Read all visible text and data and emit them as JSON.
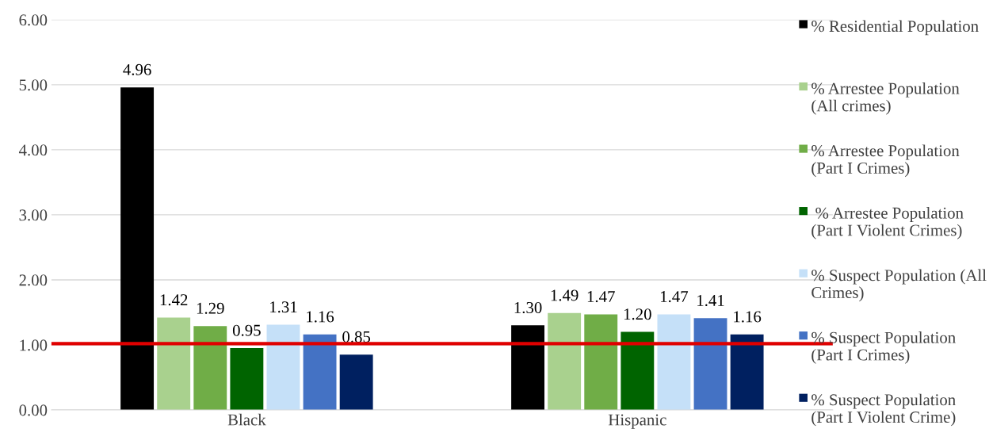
{
  "chart_data": {
    "type": "bar",
    "categories": [
      "Black",
      "Hispanic"
    ],
    "series": [
      {
        "name": "% Residential Population",
        "color": "#000000",
        "values": [
          4.96,
          1.3
        ],
        "value_labels": [
          "4.96",
          "1.30"
        ]
      },
      {
        "name": "% Arrestee Population (All crimes)",
        "color": "#a9d18e",
        "values": [
          1.42,
          1.49
        ],
        "value_labels": [
          "1.42",
          "1.49"
        ]
      },
      {
        "name": "% Arrestee Population (Part I Crimes)",
        "color": "#70ad47",
        "values": [
          1.29,
          1.47
        ],
        "value_labels": [
          "1.29",
          "1.47"
        ]
      },
      {
        "name": " % Arrestee Population (Part I Violent Crimes)",
        "color": "#006400",
        "values": [
          0.95,
          1.2
        ],
        "value_labels": [
          "0.95",
          "1.20"
        ]
      },
      {
        "name": "% Suspect Population (All Crimes)",
        "color": "#c5e0f8",
        "values": [
          1.31,
          1.47
        ],
        "value_labels": [
          "1.31",
          "1.47"
        ]
      },
      {
        "name": "% Suspect Population (Part I Crimes)",
        "color": "#4472c4",
        "values": [
          1.16,
          1.41
        ],
        "value_labels": [
          "1.16",
          "1.41"
        ]
      },
      {
        "name": "% Suspect Population (Part I Violent Crime)",
        "color": "#002060",
        "values": [
          0.85,
          1.16
        ],
        "value_labels": [
          "0.85",
          "1.16"
        ]
      }
    ],
    "ylim": [
      0,
      6
    ],
    "yticks": [
      {
        "value": 0,
        "label": "0.00"
      },
      {
        "value": 1,
        "label": "1.00"
      },
      {
        "value": 2,
        "label": "2.00"
      },
      {
        "value": 3,
        "label": "3.00"
      },
      {
        "value": 4,
        "label": "4.00"
      },
      {
        "value": 5,
        "label": "5.00"
      },
      {
        "value": 6,
        "label": "6.00"
      }
    ],
    "grid": "y",
    "legend": "right",
    "ref_lines": [
      {
        "axis": "y",
        "value": 1.02,
        "color": "#e00000"
      }
    ]
  }
}
